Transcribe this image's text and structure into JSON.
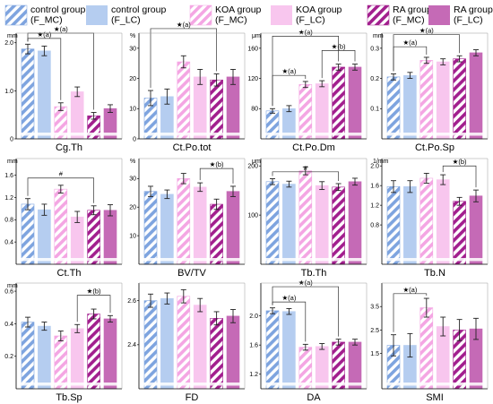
{
  "legend": [
    {
      "label": "control group\n(F_MC)",
      "color": "#7ea4df",
      "hatch": true
    },
    {
      "label": "control group\n(F_LC)",
      "color": "#b5cdf0",
      "hatch": false
    },
    {
      "label": "KOA group\n(F_MC)",
      "color": "#f4a6e3",
      "hatch": true
    },
    {
      "label": "KOA group\n(F_LC)",
      "color": "#f8c6ee",
      "hatch": false
    },
    {
      "label": "RA group\n(F_MC)",
      "color": "#a21f8e",
      "hatch": true
    },
    {
      "label": "RA group\n(F_LC)",
      "color": "#c56ab6",
      "hatch": false
    }
  ],
  "chart_data": [
    {
      "type": "bar",
      "xlabel": "Cg.Th",
      "unit": "mm",
      "ylim": [
        0,
        2.2
      ],
      "ticks": [
        "0",
        "1.0",
        "2.0"
      ],
      "tick_values": [
        0,
        1.0,
        2.0
      ],
      "values": [
        1.87,
        1.83,
        0.67,
        0.98,
        0.48,
        0.63
      ],
      "errors": [
        0.1,
        0.1,
        0.08,
        0.1,
        0.07,
        0.08
      ],
      "annotations": [
        {
          "text": "★(a)",
          "from": 0,
          "to": 2,
          "y": 2.09
        },
        {
          "text": "★(a)",
          "from": 0,
          "to": 4,
          "y": 2.2
        }
      ]
    },
    {
      "type": "bar",
      "xlabel": "Ct.Po.tot",
      "unit": "%",
      "ylim": [
        0,
        35
      ],
      "ticks": [
        "0",
        "10",
        "20",
        "30"
      ],
      "tick_values": [
        0,
        10,
        20,
        30
      ],
      "values": [
        13.5,
        14,
        25.5,
        20.5,
        19.5,
        20.5
      ],
      "errors": [
        2.5,
        2.5,
        2,
        2.5,
        2,
        2.5
      ],
      "annotations": [
        {
          "text": "★(a)",
          "from": 0,
          "to": 4,
          "y": 36.5
        }
      ]
    },
    {
      "type": "bar",
      "xlabel": "Ct.Po.Dm",
      "unit": "μm",
      "ylim": [
        40,
        180
      ],
      "ticks": [
        "80",
        "120",
        "160"
      ],
      "tick_values": [
        80,
        120,
        160
      ],
      "values": [
        77,
        80,
        112,
        113,
        135,
        135
      ],
      "errors": [
        3,
        4,
        4,
        4,
        4,
        4
      ],
      "annotations": [
        {
          "text": "★(a)",
          "from": 0,
          "to": 2,
          "y": 124
        },
        {
          "text": "★(b)",
          "from": 3,
          "to": 5,
          "y": 157
        },
        {
          "text": "★(a)",
          "from": 0,
          "to": 4,
          "y": 176
        }
      ]
    },
    {
      "type": "bar",
      "xlabel": "Ct.Po.Sp",
      "unit": "mm",
      "ylim": [
        0,
        0.35
      ],
      "ticks": [
        "0.1",
        "0.2",
        "0.3"
      ],
      "tick_values": [
        0.1,
        0.2,
        0.3
      ],
      "values": [
        0.205,
        0.21,
        0.26,
        0.255,
        0.265,
        0.285
      ],
      "errors": [
        0.01,
        0.01,
        0.01,
        0.01,
        0.01,
        0.01
      ],
      "annotations": [
        {
          "text": "★(a)",
          "from": 0,
          "to": 2,
          "y": 0.305
        },
        {
          "text": "★(a)",
          "from": 0,
          "to": 4,
          "y": 0.345
        }
      ]
    },
    {
      "type": "bar",
      "xlabel": "Ct.Th",
      "unit": "mm",
      "ylim": [
        0,
        1.9
      ],
      "ticks": [
        "0.4",
        "0.8",
        "1.2",
        "1.6"
      ],
      "tick_values": [
        0.4,
        0.8,
        1.2,
        1.6
      ],
      "values": [
        1.08,
        0.98,
        1.35,
        0.85,
        0.97,
        0.97
      ],
      "errors": [
        0.1,
        0.1,
        0.07,
        0.1,
        0.08,
        0.1
      ],
      "annotations": [
        {
          "text": "#",
          "from": 0,
          "to": 4,
          "y": 1.55
        }
      ]
    },
    {
      "type": "bar",
      "xlabel": "BV/TV",
      "unit": "%",
      "ylim": [
        0,
        37
      ],
      "ticks": [
        "10",
        "20",
        "30"
      ],
      "tick_values": [
        10,
        20,
        30
      ],
      "values": [
        25.5,
        24.5,
        30,
        27,
        21,
        25.5
      ],
      "errors": [
        1.8,
        1.5,
        1.8,
        1.5,
        1.8,
        1.8
      ],
      "annotations": [
        {
          "text": "★(b)",
          "from": 3,
          "to": 5,
          "y": 33.5
        }
      ]
    },
    {
      "type": "bar",
      "xlabel": "Tb.Th",
      "unit": "μm",
      "ylim": [
        0,
        215
      ],
      "ticks": [
        "100",
        "200"
      ],
      "tick_values": [
        100,
        200
      ],
      "values": [
        168,
        163,
        190,
        160,
        157,
        168
      ],
      "errors": [
        6,
        6,
        8,
        8,
        7,
        7
      ],
      "annotations": [
        {
          "text": "#",
          "from": 0,
          "to": 4,
          "y": 188
        }
      ]
    },
    {
      "type": "bar",
      "xlabel": "Tb.N",
      "unit": "1/mm",
      "ylim": [
        0,
        2.15
      ],
      "ticks": [
        "0.8",
        "1.2",
        "1.6",
        "2.0"
      ],
      "tick_values": [
        0.8,
        1.2,
        1.6,
        2.0
      ],
      "values": [
        1.58,
        1.58,
        1.75,
        1.72,
        1.28,
        1.39
      ],
      "errors": [
        0.12,
        0.12,
        0.1,
        0.1,
        0.08,
        0.12
      ],
      "annotations": [
        {
          "text": "★(b)",
          "from": 3,
          "to": 5,
          "y": 2.0
        }
      ]
    },
    {
      "type": "bar",
      "xlabel": "Tb.Sp",
      "unit": "mm",
      "ylim": [
        0,
        0.65
      ],
      "ticks": [
        "0.2",
        "0.4",
        "0.6"
      ],
      "tick_values": [
        0.2,
        0.4,
        0.6
      ],
      "values": [
        0.41,
        0.385,
        0.325,
        0.37,
        0.46,
        0.43
      ],
      "errors": [
        0.03,
        0.025,
        0.03,
        0.025,
        0.03,
        0.02
      ],
      "annotations": [
        {
          "text": "★(b)",
          "from": 3,
          "to": 5,
          "y": 0.575
        }
      ]
    },
    {
      "type": "bar",
      "xlabel": "FD",
      "unit": "",
      "ylim": [
        2.2,
        2.68
      ],
      "ticks": [
        "2.4",
        "2.6"
      ],
      "tick_values": [
        2.4,
        2.6
      ],
      "values": [
        2.6,
        2.61,
        2.62,
        2.58,
        2.52,
        2.53
      ],
      "errors": [
        0.03,
        0.025,
        0.03,
        0.03,
        0.03,
        0.03
      ],
      "annotations": []
    },
    {
      "type": "bar",
      "xlabel": "DA",
      "unit": "",
      "ylim": [
        1.0,
        2.45
      ],
      "ticks": [
        "1.2",
        "1.6",
        "2.0"
      ],
      "tick_values": [
        1.2,
        1.6,
        2.0
      ],
      "values": [
        2.07,
        2.06,
        1.57,
        1.58,
        1.64,
        1.64
      ],
      "errors": [
        0.04,
        0.04,
        0.04,
        0.04,
        0.04,
        0.04
      ],
      "annotations": [
        {
          "text": "★(a)",
          "from": 0,
          "to": 2,
          "y": 2.19
        },
        {
          "text": "★(a)",
          "from": 0,
          "to": 4,
          "y": 2.4
        }
      ]
    },
    {
      "type": "bar",
      "xlabel": "SMI",
      "unit": "",
      "ylim": [
        0,
        4.5
      ],
      "ticks": [
        "1.5",
        "2.5",
        "3.5"
      ],
      "tick_values": [
        1.5,
        2.5,
        3.5
      ],
      "values": [
        1.85,
        1.85,
        3.45,
        2.65,
        2.5,
        2.55
      ],
      "errors": [
        0.45,
        0.5,
        0.4,
        0.4,
        0.45,
        0.45
      ],
      "annotations": [
        {
          "text": "★(a)",
          "from": 0,
          "to": 2,
          "y": 4.05
        }
      ]
    }
  ]
}
